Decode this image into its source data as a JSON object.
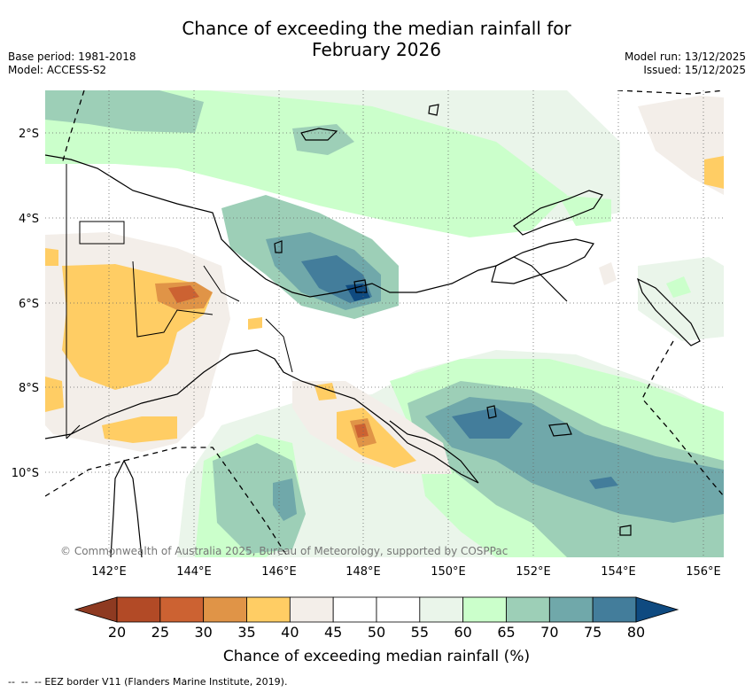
{
  "title_line1": "Chance of exceeding the median rainfall for",
  "title_line2": "February 2026",
  "base_period": "Base period: 1981-2018",
  "model": "Model: ACCESS-S2",
  "model_run": "Model run: 13/12/2025",
  "issued": "Issued: 15/12/2025",
  "copyright": "© Commonwealth of Australia 2025, Bureau of Meteorology, supported by COSPPac",
  "lat_labels": [
    "2°S",
    "4°S",
    "6°S",
    "8°S",
    "10°S"
  ],
  "lon_labels": [
    "142°E",
    "144°E",
    "146°E",
    "148°E",
    "150°E",
    "152°E",
    "154°E",
    "156°E"
  ],
  "colorbar": {
    "title": "Chance of exceeding median rainfall (%)",
    "ticks": [
      "20",
      "25",
      "30",
      "35",
      "40",
      "45",
      "50",
      "55",
      "60",
      "65",
      "70",
      "75",
      "80"
    ],
    "colors": [
      "#8e3a21",
      "#b24a26",
      "#cc6232",
      "#e09447",
      "#ffcd64",
      "#f3eee9",
      "#ffffff",
      "#ffffff",
      "#eaf5ea",
      "#cbffcb",
      "#9dcfb7",
      "#70a8aa",
      "#437d9b",
      "#0f4a80"
    ]
  },
  "legend": {
    "eez": "EEZ border V11 (Flanders Marine Institute, 2019)."
  }
}
